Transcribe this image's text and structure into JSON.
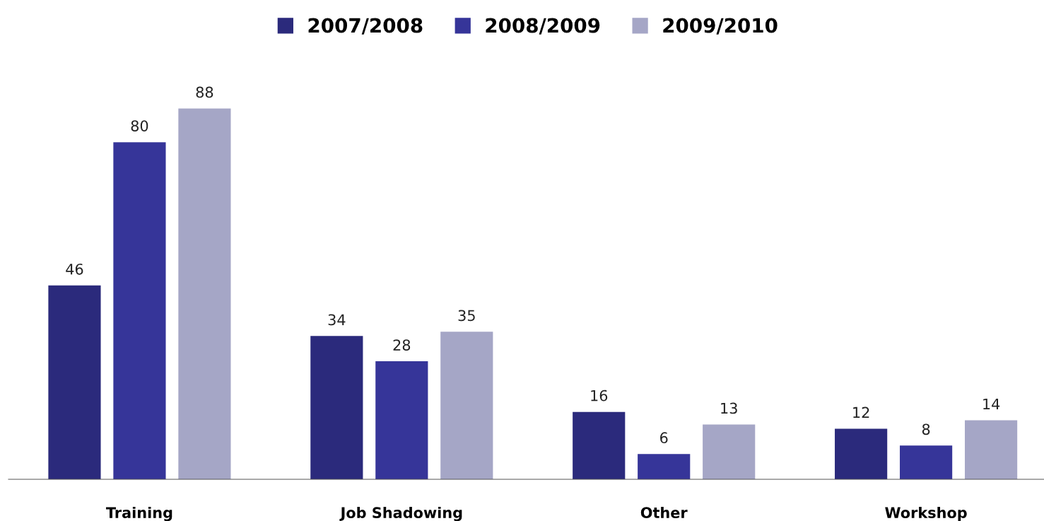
{
  "chart_data": {
    "type": "bar",
    "categories": [
      "Training",
      "Job Shadowing",
      "Other",
      "Workshop"
    ],
    "series": [
      {
        "name": "2007/2008",
        "color": "#2b2a7c",
        "values": [
          46,
          34,
          16,
          12
        ]
      },
      {
        "name": "2008/2009",
        "color": "#363599",
        "values": [
          80,
          28,
          6,
          8
        ]
      },
      {
        "name": "2009/2010",
        "color": "#a5a6c6",
        "values": [
          88,
          35,
          13,
          14
        ]
      }
    ],
    "data_labels": true,
    "legend": "top",
    "grid": false
  }
}
